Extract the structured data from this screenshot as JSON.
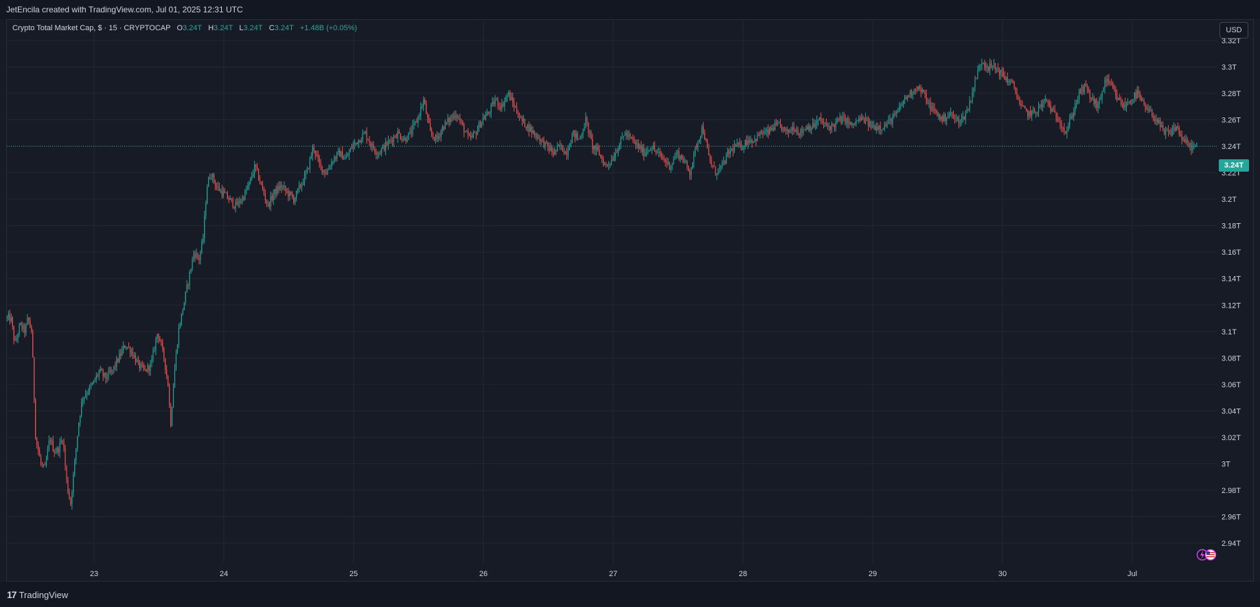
{
  "header": {
    "credit": "JetEncila created with TradingView.com, Jul 01, 2025 12:31 UTC"
  },
  "legend": {
    "symbol": "Crypto Total Market Cap, $ · 15 · CRYPTOCAP",
    "o_label": "O",
    "o_value": "3.24T",
    "h_label": "H",
    "h_value": "3.24T",
    "l_label": "L",
    "l_value": "3.24T",
    "c_label": "C",
    "c_value": "3.24T",
    "change": "+1.48B (+0.05%)"
  },
  "currency": "USD",
  "last_price_label": "3.24T",
  "footer": {
    "brand": "TradingView",
    "brand_mark": "17"
  },
  "colors": {
    "up": "#26a69a",
    "down": "#ef5350",
    "background": "#171b26",
    "grid": "#232733",
    "text": "#d1d4dc",
    "price_line": "#26a69a"
  },
  "event_icons": [
    "lightning-icon",
    "us-flag-icon"
  ],
  "chart_data": {
    "type": "candlestick",
    "interval": "15",
    "ylim": [
      2.925,
      3.335
    ],
    "y_unit": "T",
    "y_ticks": [
      "3.32T",
      "3.3T",
      "3.28T",
      "3.26T",
      "3.24T",
      "3.22T",
      "3.2T",
      "3.18T",
      "3.16T",
      "3.14T",
      "3.12T",
      "3.1T",
      "3.08T",
      "3.06T",
      "3.04T",
      "3.02T",
      "3T",
      "2.98T",
      "2.96T",
      "2.94T"
    ],
    "y_tick_values": [
      3.32,
      3.3,
      3.28,
      3.26,
      3.24,
      3.22,
      3.2,
      3.18,
      3.16,
      3.14,
      3.12,
      3.1,
      3.08,
      3.06,
      3.04,
      3.02,
      3.0,
      2.98,
      2.96,
      2.94
    ],
    "x_ticks": [
      "23",
      "24",
      "25",
      "26",
      "27",
      "28",
      "29",
      "30",
      "Jul"
    ],
    "x_tick_days": [
      1,
      2,
      3,
      4,
      5,
      6,
      7,
      8,
      9
    ],
    "x_range_days": [
      0.33,
      9.5
    ],
    "last_price": 3.24,
    "grid": true,
    "price_path": [
      [
        0.33,
        3.11
      ],
      [
        0.37,
        3.11
      ],
      [
        0.4,
        3.09
      ],
      [
        0.44,
        3.105
      ],
      [
        0.48,
        3.1
      ],
      [
        0.5,
        3.11
      ],
      [
        0.53,
        3.1
      ],
      [
        0.56,
        3.02
      ],
      [
        0.6,
        3.0
      ],
      [
        0.63,
        2.995
      ],
      [
        0.67,
        3.02
      ],
      [
        0.7,
        3.01
      ],
      [
        0.73,
        3.01
      ],
      [
        0.77,
        3.02
      ],
      [
        0.8,
        2.985
      ],
      [
        0.83,
        2.97
      ],
      [
        0.86,
        3.0
      ],
      [
        0.89,
        3.03
      ],
      [
        0.92,
        3.05
      ],
      [
        0.96,
        3.055
      ],
      [
        1.0,
        3.06
      ],
      [
        1.05,
        3.07
      ],
      [
        1.1,
        3.065
      ],
      [
        1.15,
        3.07
      ],
      [
        1.2,
        3.08
      ],
      [
        1.25,
        3.09
      ],
      [
        1.3,
        3.085
      ],
      [
        1.35,
        3.075
      ],
      [
        1.4,
        3.07
      ],
      [
        1.45,
        3.075
      ],
      [
        1.5,
        3.1
      ],
      [
        1.55,
        3.08
      ],
      [
        1.58,
        3.06
      ],
      [
        1.6,
        3.03
      ],
      [
        1.63,
        3.07
      ],
      [
        1.66,
        3.1
      ],
      [
        1.7,
        3.12
      ],
      [
        1.74,
        3.14
      ],
      [
        1.78,
        3.16
      ],
      [
        1.82,
        3.155
      ],
      [
        1.85,
        3.17
      ],
      [
        1.88,
        3.21
      ],
      [
        1.91,
        3.22
      ],
      [
        1.95,
        3.21
      ],
      [
        2.0,
        3.205
      ],
      [
        2.05,
        3.2
      ],
      [
        2.1,
        3.195
      ],
      [
        2.15,
        3.2
      ],
      [
        2.2,
        3.21
      ],
      [
        2.25,
        3.225
      ],
      [
        2.3,
        3.21
      ],
      [
        2.35,
        3.195
      ],
      [
        2.4,
        3.205
      ],
      [
        2.45,
        3.21
      ],
      [
        2.5,
        3.205
      ],
      [
        2.55,
        3.2
      ],
      [
        2.6,
        3.21
      ],
      [
        2.65,
        3.22
      ],
      [
        2.7,
        3.24
      ],
      [
        2.75,
        3.225
      ],
      [
        2.8,
        3.22
      ],
      [
        2.85,
        3.23
      ],
      [
        2.9,
        3.235
      ],
      [
        2.95,
        3.23
      ],
      [
        3.0,
        3.24
      ],
      [
        3.05,
        3.245
      ],
      [
        3.1,
        3.25
      ],
      [
        3.15,
        3.24
      ],
      [
        3.2,
        3.235
      ],
      [
        3.25,
        3.24
      ],
      [
        3.3,
        3.245
      ],
      [
        3.35,
        3.25
      ],
      [
        3.4,
        3.245
      ],
      [
        3.45,
        3.25
      ],
      [
        3.5,
        3.26
      ],
      [
        3.55,
        3.275
      ],
      [
        3.6,
        3.25
      ],
      [
        3.65,
        3.245
      ],
      [
        3.7,
        3.255
      ],
      [
        3.75,
        3.26
      ],
      [
        3.8,
        3.265
      ],
      [
        3.85,
        3.255
      ],
      [
        3.9,
        3.245
      ],
      [
        3.95,
        3.25
      ],
      [
        4.0,
        3.26
      ],
      [
        4.05,
        3.265
      ],
      [
        4.1,
        3.275
      ],
      [
        4.15,
        3.27
      ],
      [
        4.2,
        3.28
      ],
      [
        4.25,
        3.27
      ],
      [
        4.3,
        3.26
      ],
      [
        4.35,
        3.255
      ],
      [
        4.4,
        3.25
      ],
      [
        4.45,
        3.245
      ],
      [
        4.5,
        3.24
      ],
      [
        4.55,
        3.235
      ],
      [
        4.6,
        3.24
      ],
      [
        4.65,
        3.235
      ],
      [
        4.7,
        3.25
      ],
      [
        4.75,
        3.245
      ],
      [
        4.8,
        3.26
      ],
      [
        4.85,
        3.24
      ],
      [
        4.9,
        3.235
      ],
      [
        4.95,
        3.225
      ],
      [
        5.0,
        3.23
      ],
      [
        5.05,
        3.24
      ],
      [
        5.1,
        3.25
      ],
      [
        5.15,
        3.245
      ],
      [
        5.2,
        3.24
      ],
      [
        5.25,
        3.235
      ],
      [
        5.3,
        3.24
      ],
      [
        5.35,
        3.235
      ],
      [
        5.4,
        3.23
      ],
      [
        5.45,
        3.225
      ],
      [
        5.5,
        3.235
      ],
      [
        5.55,
        3.23
      ],
      [
        5.6,
        3.22
      ],
      [
        5.65,
        3.24
      ],
      [
        5.7,
        3.255
      ],
      [
        5.75,
        3.23
      ],
      [
        5.8,
        3.22
      ],
      [
        5.85,
        3.225
      ],
      [
        5.9,
        3.235
      ],
      [
        5.95,
        3.24
      ],
      [
        6.0,
        3.24
      ],
      [
        6.05,
        3.245
      ],
      [
        6.1,
        3.245
      ],
      [
        6.15,
        3.25
      ],
      [
        6.2,
        3.25
      ],
      [
        6.25,
        3.255
      ],
      [
        6.3,
        3.255
      ],
      [
        6.35,
        3.25
      ],
      [
        6.4,
        3.255
      ],
      [
        6.45,
        3.25
      ],
      [
        6.5,
        3.255
      ],
      [
        6.55,
        3.255
      ],
      [
        6.6,
        3.26
      ],
      [
        6.65,
        3.255
      ],
      [
        6.7,
        3.255
      ],
      [
        6.75,
        3.26
      ],
      [
        6.8,
        3.26
      ],
      [
        6.85,
        3.255
      ],
      [
        6.9,
        3.26
      ],
      [
        6.95,
        3.26
      ],
      [
        7.0,
        3.255
      ],
      [
        7.05,
        3.255
      ],
      [
        7.1,
        3.255
      ],
      [
        7.15,
        3.26
      ],
      [
        7.2,
        3.265
      ],
      [
        7.25,
        3.275
      ],
      [
        7.3,
        3.28
      ],
      [
        7.35,
        3.285
      ],
      [
        7.4,
        3.28
      ],
      [
        7.45,
        3.27
      ],
      [
        7.5,
        3.265
      ],
      [
        7.55,
        3.26
      ],
      [
        7.6,
        3.265
      ],
      [
        7.65,
        3.26
      ],
      [
        7.7,
        3.26
      ],
      [
        7.75,
        3.27
      ],
      [
        7.8,
        3.29
      ],
      [
        7.85,
        3.305
      ],
      [
        7.9,
        3.3
      ],
      [
        7.95,
        3.3
      ],
      [
        8.0,
        3.295
      ],
      [
        8.05,
        3.29
      ],
      [
        8.1,
        3.285
      ],
      [
        8.15,
        3.27
      ],
      [
        8.2,
        3.265
      ],
      [
        8.25,
        3.265
      ],
      [
        8.3,
        3.27
      ],
      [
        8.35,
        3.275
      ],
      [
        8.4,
        3.265
      ],
      [
        8.45,
        3.26
      ],
      [
        8.5,
        3.25
      ],
      [
        8.55,
        3.265
      ],
      [
        8.6,
        3.28
      ],
      [
        8.65,
        3.285
      ],
      [
        8.7,
        3.275
      ],
      [
        8.75,
        3.27
      ],
      [
        8.8,
        3.29
      ],
      [
        8.85,
        3.285
      ],
      [
        8.9,
        3.275
      ],
      [
        8.95,
        3.27
      ],
      [
        9.0,
        3.275
      ],
      [
        9.05,
        3.28
      ],
      [
        9.1,
        3.27
      ],
      [
        9.15,
        3.265
      ],
      [
        9.2,
        3.26
      ],
      [
        9.25,
        3.25
      ],
      [
        9.3,
        3.25
      ],
      [
        9.35,
        3.255
      ],
      [
        9.4,
        3.245
      ],
      [
        9.45,
        3.24
      ],
      [
        9.5,
        3.24
      ]
    ]
  }
}
